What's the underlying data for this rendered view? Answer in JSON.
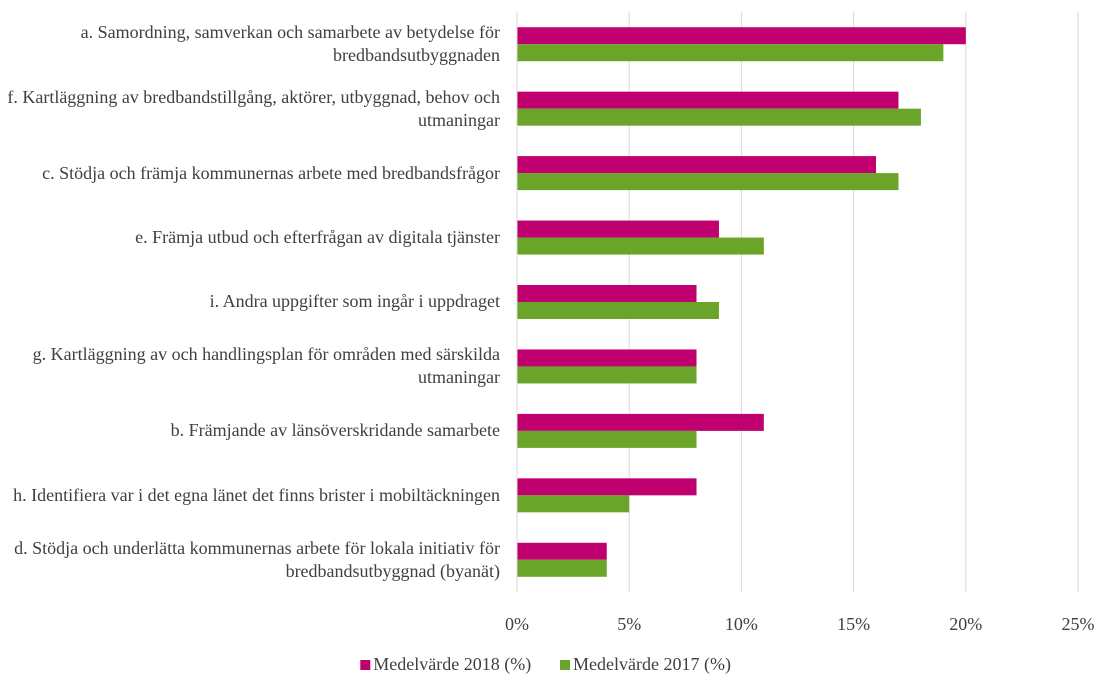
{
  "chart_data": {
    "type": "barh",
    "categories": [
      "a. Samordning, samverkan och samarbete av betydelse för bredbandsutbyggnaden",
      "f. Kartläggning av bredbandstillgång, aktörer, utbyggnad, behov och utmaningar",
      "c. Stödja och främja kommunernas arbete med bredbandsfrågor",
      "e. Främja utbud och efterfrågan av digitala tjänster",
      "i. Andra uppgifter som ingår i uppdraget",
      "g. Kartläggning av och handlingsplan för områden med särskilda utmaningar",
      "b. Främjande av länsöverskridande samarbete",
      "h. Identifiera var i det egna länet det finns brister i mobiltäckningen",
      "d. Stödja och underlätta kommunernas arbete för lokala initiativ för bredbandsutbyggnad (byanät)"
    ],
    "series": [
      {
        "name": "Medelvärde 2018 (%)",
        "color": "#c0006f",
        "values": [
          20,
          17,
          16,
          9,
          8,
          8,
          11,
          8,
          4
        ]
      },
      {
        "name": "Medelvärde 2017 (%)",
        "color": "#6aa428",
        "values": [
          19,
          18,
          17,
          11,
          9,
          8,
          8,
          5,
          4
        ]
      }
    ],
    "xlim": [
      0,
      25
    ],
    "xticks": [
      {
        "value": 0,
        "label": "0%"
      },
      {
        "value": 5,
        "label": "5%"
      },
      {
        "value": 10,
        "label": "10%"
      },
      {
        "value": 15,
        "label": "15%"
      },
      {
        "value": 20,
        "label": "20%"
      },
      {
        "value": 25,
        "label": "25%"
      }
    ],
    "grid": true,
    "legend": "bottom"
  }
}
